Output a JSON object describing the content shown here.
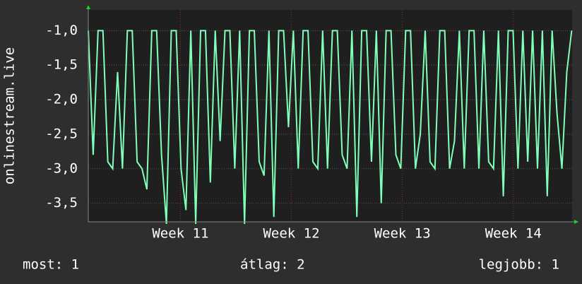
{
  "chart_data": {
    "type": "line",
    "y_label": "onlinestream.live",
    "x": [
      10.17,
      10.214,
      10.258,
      10.302,
      10.346,
      10.39,
      10.434,
      10.478,
      10.522,
      10.566,
      10.61,
      10.654,
      10.698,
      10.742,
      10.786,
      10.83,
      10.874,
      10.918,
      10.962,
      11.006,
      11.05,
      11.094,
      11.138,
      11.182,
      11.226,
      11.27,
      11.314,
      11.358,
      11.402,
      11.446,
      11.49,
      11.534,
      11.578,
      11.622,
      11.666,
      11.71,
      11.754,
      11.798,
      11.842,
      11.886,
      11.93,
      11.974,
      12.018,
      12.062,
      12.106,
      12.15,
      12.194,
      12.238,
      12.282,
      12.326,
      12.37,
      12.414,
      12.458,
      12.502,
      12.546,
      12.59,
      12.634,
      12.678,
      12.722,
      12.766,
      12.81,
      12.854,
      12.898,
      12.942,
      12.986,
      13.03,
      13.074,
      13.118,
      13.162,
      13.206,
      13.25,
      13.294,
      13.338,
      13.382,
      13.426,
      13.47,
      13.514,
      13.558,
      13.602,
      13.646,
      13.69,
      13.734,
      13.778,
      13.822,
      13.866,
      13.91,
      13.954,
      13.998,
      14.042,
      14.086,
      14.13,
      14.174,
      14.218,
      14.262,
      14.306,
      14.35,
      14.394,
      14.438,
      14.482,
      14.526
    ],
    "series": [
      {
        "color": "#7fffb8",
        "values": [
          -1.0,
          -2.8,
          -1.0,
          -1.0,
          -2.9,
          -3.0,
          -1.6,
          -3.0,
          -1.0,
          -1.0,
          -2.9,
          -3.0,
          -3.3,
          -1.0,
          -1.0,
          -2.8,
          -3.8,
          -1.0,
          -1.0,
          -3.0,
          -3.6,
          -1.0,
          -3.8,
          -1.0,
          -1.0,
          -3.2,
          -1.0,
          -2.6,
          -1.0,
          -1.0,
          -3.0,
          -1.0,
          -3.8,
          -1.0,
          -1.0,
          -2.9,
          -3.1,
          -1.0,
          -3.7,
          -1.0,
          -1.0,
          -2.4,
          -1.0,
          -3.0,
          -1.0,
          -1.0,
          -2.9,
          -3.0,
          -1.0,
          -3.0,
          -1.0,
          -1.0,
          -2.8,
          -3.0,
          -1.0,
          -3.7,
          -1.0,
          -1.0,
          -2.9,
          -1.0,
          -3.5,
          -1.0,
          -1.0,
          -2.8,
          -3.0,
          -1.0,
          -1.0,
          -3.0,
          -2.5,
          -1.0,
          -2.9,
          -3.0,
          -1.0,
          -1.0,
          -3.0,
          -2.6,
          -1.0,
          -3.0,
          -1.0,
          -1.0,
          -3.0,
          -1.0,
          -2.9,
          -3.0,
          -1.0,
          -3.4,
          -1.0,
          -1.0,
          -3.0,
          -1.0,
          -2.9,
          -1.0,
          -3.0,
          -1.0,
          -3.4,
          -1.0,
          -2.2,
          -3.0,
          -1.6,
          -1.0
        ]
      }
    ],
    "xlim": [
      10.17,
      14.53
    ],
    "xticks": [
      {
        "value": 11,
        "label": "Week 11"
      },
      {
        "value": 12,
        "label": "Week 12"
      },
      {
        "value": 13,
        "label": "Week 13"
      },
      {
        "value": 14,
        "label": "Week 14"
      }
    ],
    "ylim": [
      -3.77,
      -0.7
    ],
    "yticks": [
      {
        "value": -3.5,
        "label": "-3,5"
      },
      {
        "value": -3.0,
        "label": "-3,0"
      },
      {
        "value": -2.5,
        "label": "-2,5"
      },
      {
        "value": -2.0,
        "label": "-2,0"
      },
      {
        "value": -1.5,
        "label": "-1,5"
      },
      {
        "value": -1.0,
        "label": "-1,0"
      }
    ],
    "grid": true,
    "footer": {
      "current": "most: 1",
      "average": "átlag: 2",
      "best": "legjobb: 1"
    }
  }
}
